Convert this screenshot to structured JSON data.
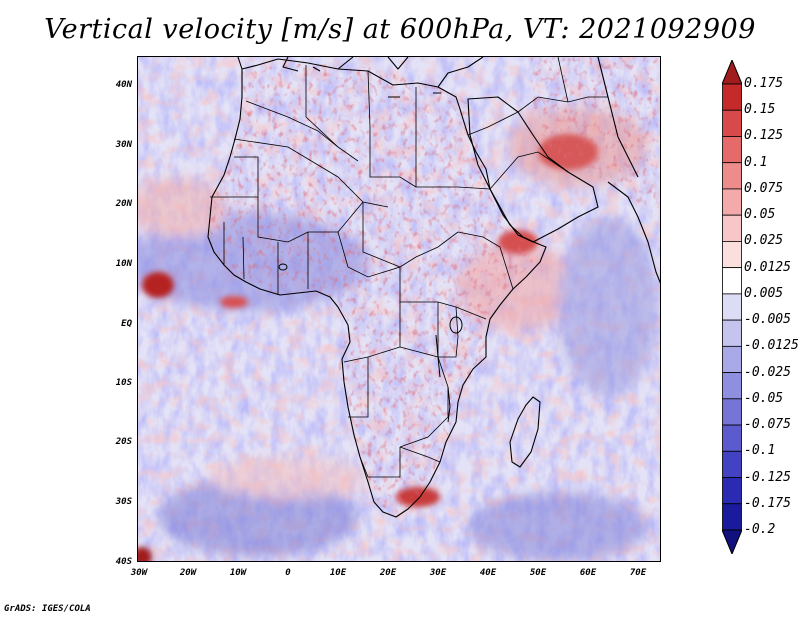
{
  "title": "Vertical velocity [m/s] at 600hPa, VT: 2021092909",
  "credit": "GrADS: IGES/COLA",
  "lat_labels": [
    "40N",
    "30N",
    "20N",
    "10N",
    "EQ",
    "10S",
    "20S",
    "30S",
    "40S"
  ],
  "lon_labels": [
    "30W",
    "20W",
    "10W",
    "0",
    "10E",
    "20E",
    "30E",
    "40E",
    "50E",
    "60E",
    "70E"
  ],
  "colorbar": {
    "labels": [
      "0.175",
      "0.15",
      "0.125",
      "0.1",
      "0.075",
      "0.05",
      "0.025",
      "0.0125",
      "0.005",
      "-0.005",
      "-0.0125",
      "-0.025",
      "-0.05",
      "-0.075",
      "-0.1",
      "-0.125",
      "-0.175",
      "-0.2"
    ],
    "colors": [
      "#a11c1c",
      "#c42a2a",
      "#d84a4a",
      "#e56a6a",
      "#ee8c8c",
      "#f4aaaa",
      "#f8c6c6",
      "#fbdede",
      "#ffffff",
      "#dcdcf5",
      "#c4c4ee",
      "#a9a9e8",
      "#8f8fe0",
      "#7575d8",
      "#5b5bce",
      "#4242c2",
      "#2a2ab2",
      "#1a1a9c",
      "#10107e"
    ]
  },
  "map": {
    "region": "Africa and surrounding oceans",
    "lon_range": [
      -30,
      75
    ],
    "lat_range": [
      -40,
      45
    ]
  }
}
